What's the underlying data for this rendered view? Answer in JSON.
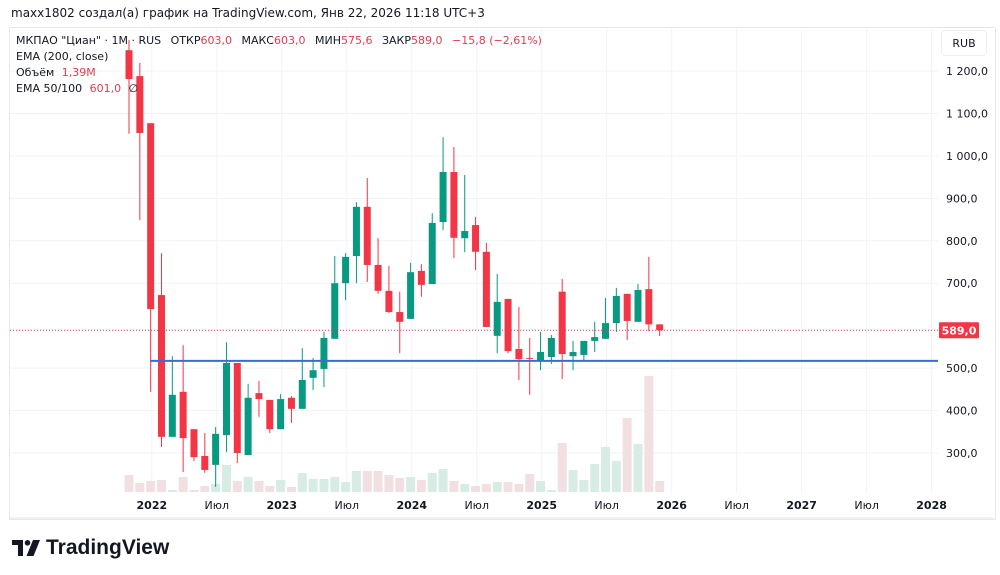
{
  "credit": "maxx1802 создал(а) график на TradingView.com, Янв 22, 2026 11:18 UTC+3",
  "legend": {
    "symbol": "МКПАО \"Циан\" · 1M · RUS",
    "open_label": "ОТКР",
    "open": "603,0",
    "high_label": "МАКС",
    "high": "603,0",
    "low_label": "МИН",
    "low": "575,6",
    "close_label": "ЗАКР",
    "close": "589,0",
    "change": "−15,8 (−2,61%)",
    "ema200": "EMA (200, close)",
    "volume_label": "Объём",
    "volume": "1,39M",
    "ema50100_label": "EMA 50/100",
    "ema50100": "601,0",
    "ema50100_extra": "∅"
  },
  "currency_button": "RUB",
  "last_price_label": "589,0",
  "logo_text": "TradingView",
  "colors": {
    "up": "#089981",
    "down": "#f23645",
    "up_vol": "#d6ece4",
    "down_vol": "#f1dfe1",
    "hline": "#3d6bd6",
    "grid": "#f0f3fa"
  },
  "chart_data": {
    "type": "candlestick",
    "title": "МКПАО \"Циан\" · 1M · RUS",
    "ylabel": "RUB",
    "ylim": [
      220,
      1280
    ],
    "yticks": [
      "1 200,0",
      "1 100,0",
      "1 000,0",
      "900,0",
      "800,0",
      "700,0",
      "500,0",
      "400,0",
      "300,0"
    ],
    "ytick_values": [
      1200,
      1100,
      1000,
      900,
      800,
      700,
      500,
      400,
      300
    ],
    "xticks": [
      {
        "label": "2022",
        "month": 1
      },
      {
        "label": "Июл",
        "month": 7
      },
      {
        "label": "2023",
        "month": 13
      },
      {
        "label": "Июл",
        "month": 19
      },
      {
        "label": "2024",
        "month": 25
      },
      {
        "label": "Июл",
        "month": 31
      },
      {
        "label": "2025",
        "month": 37
      },
      {
        "label": "Июл",
        "month": 43
      },
      {
        "label": "2026",
        "month": 49
      },
      {
        "label": "Июл",
        "month": 55
      },
      {
        "label": "2027",
        "month": 61
      },
      {
        "label": "Июл",
        "month": 67
      },
      {
        "label": "2028",
        "month": 73
      }
    ],
    "first_candle": "2021-12",
    "ohlc": [
      [
        1249,
        1273,
        1052,
        1181
      ],
      [
        1188,
        1219,
        849,
        1054
      ],
      [
        1077,
        1077,
        444,
        639
      ],
      [
        672,
        771,
        314,
        338
      ],
      [
        338,
        528,
        338,
        437
      ],
      [
        444,
        554,
        255,
        335
      ],
      [
        356,
        356,
        281,
        290
      ],
      [
        293,
        347,
        253,
        260
      ],
      [
        272,
        361,
        220,
        345
      ],
      [
        342,
        561,
        302,
        512
      ],
      [
        512,
        512,
        276,
        300
      ],
      [
        295,
        463,
        295,
        430
      ],
      [
        441,
        470,
        385,
        427
      ],
      [
        425,
        425,
        347,
        356
      ],
      [
        356,
        439,
        356,
        427
      ],
      [
        430,
        434,
        371,
        404
      ],
      [
        404,
        547,
        404,
        472
      ],
      [
        477,
        524,
        448,
        495
      ],
      [
        498,
        585,
        455,
        571
      ],
      [
        569,
        764,
        569,
        700
      ],
      [
        700,
        771,
        660,
        762
      ],
      [
        764,
        891,
        700,
        880
      ],
      [
        880,
        948,
        703,
        743
      ],
      [
        743,
        806,
        675,
        682
      ],
      [
        682,
        741,
        630,
        632
      ],
      [
        632,
        680,
        535,
        609
      ],
      [
        616,
        748,
        616,
        726
      ],
      [
        729,
        745,
        668,
        696
      ],
      [
        698,
        865,
        698,
        842
      ],
      [
        844,
        1044,
        825,
        962
      ],
      [
        962,
        1021,
        759,
        807
      ],
      [
        806,
        955,
        773,
        823
      ],
      [
        837,
        856,
        731,
        774
      ],
      [
        774,
        795,
        597,
        597
      ],
      [
        576,
        722,
        535,
        656
      ],
      [
        663,
        663,
        535,
        540
      ],
      [
        545,
        644,
        472,
        521
      ],
      [
        524,
        571,
        437,
        522
      ],
      [
        519,
        585,
        495,
        538
      ],
      [
        526,
        578,
        510,
        571
      ],
      [
        680,
        710,
        474,
        533
      ],
      [
        528,
        564,
        495,
        538
      ],
      [
        531,
        564,
        519,
        564
      ],
      [
        564,
        609,
        538,
        573
      ],
      [
        569,
        665,
        569,
        606
      ],
      [
        606,
        689,
        585,
        670
      ],
      [
        675,
        675,
        566,
        611
      ],
      [
        609,
        698,
        609,
        684
      ],
      [
        686,
        762,
        587,
        603
      ],
      [
        603,
        603,
        575.6,
        589
      ]
    ],
    "volume_millions": [
      2.15,
      1.14,
      1.39,
      1.52,
      0.25,
      1.9,
      0.25,
      0.76,
      1.01,
      3.41,
      1.39,
      1.9,
      1.39,
      0.76,
      1.52,
      0.63,
      2.4,
      1.64,
      1.64,
      1.9,
      1.26,
      2.65,
      2.65,
      2.65,
      2.15,
      1.77,
      1.9,
      1.52,
      2.4,
      2.91,
      1.39,
      1.01,
      0.76,
      1.01,
      1.26,
      1.26,
      1.01,
      2.28,
      1.39,
      0.25,
      6.19,
      2.78,
      1.52,
      3.54,
      5.69,
      3.92,
      9.35,
      6.07,
      14.66,
      1.39
    ],
    "horizontal_line": 517,
    "last_price": 589
  }
}
